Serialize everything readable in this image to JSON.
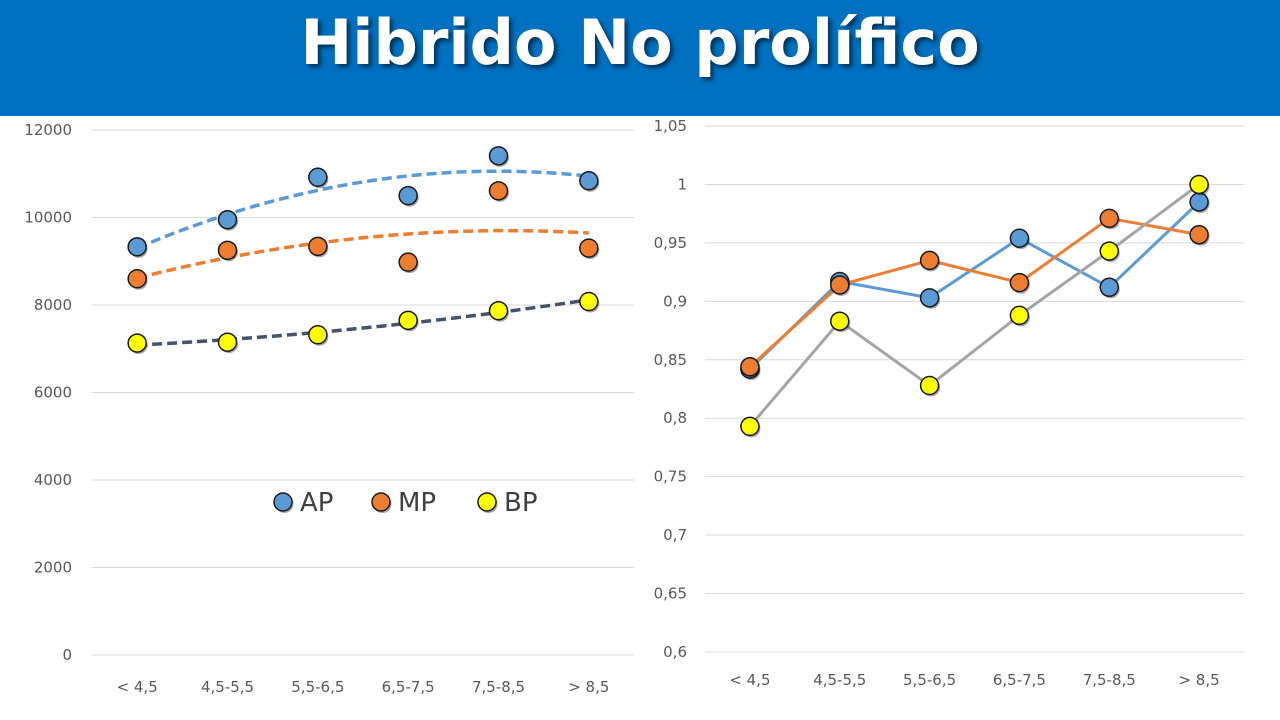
{
  "title": "Hibrido No prolífico",
  "colors": {
    "banner": "#0070C0",
    "AP": "#5B9BD5",
    "MP": "#ED7D31",
    "BP": "#FFFF00",
    "gray_line": "#A5A5A5",
    "trend_BP": "#44546A"
  },
  "chart_data": [
    {
      "type": "scatter",
      "categories": [
        "< 4,5",
        "4,5-5,5",
        "5,5-6,5",
        "6,5-7,5",
        "7,5-8,5",
        "> 8,5"
      ],
      "y_ticks": [
        "0",
        "2000",
        "4000",
        "6000",
        "8000",
        "10000",
        "12000"
      ],
      "ylim": [
        0,
        12000
      ],
      "grid": true,
      "trendlines": "polynomial, dashed",
      "legend": {
        "position": "center",
        "entries": [
          "AP",
          "MP",
          "BP"
        ]
      },
      "series": [
        {
          "name": "AP",
          "color": "#5B9BD5",
          "values": [
            9330,
            9950,
            10920,
            10500,
            11410,
            10840
          ]
        },
        {
          "name": "MP",
          "color": "#ED7D31",
          "values": [
            8600,
            9250,
            9340,
            8980,
            10610,
            9300
          ]
        },
        {
          "name": "BP",
          "color": "#FFFF00",
          "values": [
            7130,
            7150,
            7320,
            7650,
            7870,
            8080
          ]
        }
      ]
    },
    {
      "type": "line",
      "categories": [
        "< 4,5",
        "4,5-5,5",
        "5,5-6,5",
        "6,5-7,5",
        "7,5-8,5",
        "> 8,5"
      ],
      "y_ticks": [
        "0,6",
        "0,65",
        "0,7",
        "0,75",
        "0,8",
        "0,85",
        "0,9",
        "0,95",
        "1",
        "1,05"
      ],
      "ylim": [
        0.6,
        1.05
      ],
      "grid": true,
      "series": [
        {
          "color": "#5B9BD5",
          "values": [
            0.842,
            0.917,
            0.903,
            0.954,
            0.912,
            0.985
          ]
        },
        {
          "color": "#ED7D31",
          "values": [
            0.844,
            0.914,
            0.935,
            0.916,
            0.971,
            0.957
          ]
        },
        {
          "color": "#FFFF00",
          "line_color": "#A5A5A5",
          "values": [
            0.793,
            0.883,
            0.828,
            0.888,
            0.943,
            1.0
          ]
        }
      ]
    }
  ]
}
